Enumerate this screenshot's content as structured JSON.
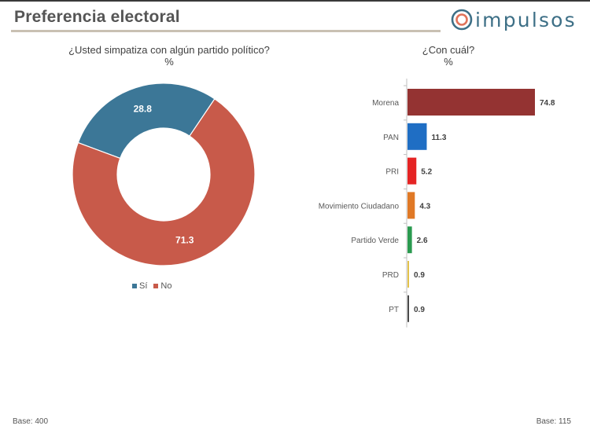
{
  "header": {
    "title": "Preferencia electoral",
    "logo_text": "impulsos"
  },
  "left_chart": {
    "question": "¿Usted simpatiza con algún partido político?",
    "unit": "%",
    "base": "Base: 400"
  },
  "right_chart": {
    "question": "¿Con cuál?",
    "unit": "%",
    "base": "Base: 115"
  },
  "chart_data": [
    {
      "type": "pie",
      "variant": "donut",
      "title": "¿Usted simpatiza con algún partido político?",
      "subtitle": "%",
      "categories": [
        "Sí",
        "No"
      ],
      "values": [
        28.8,
        71.3
      ],
      "colors": [
        "#3c7797",
        "#c85a4a"
      ],
      "legend_position": "bottom"
    },
    {
      "type": "bar",
      "orientation": "horizontal",
      "title": "¿Con cuál?",
      "subtitle": "%",
      "categories": [
        "Morena",
        "PAN",
        "PRI",
        "Movimiento Ciudadano",
        "Partido Verde",
        "PRD",
        "PT"
      ],
      "values": [
        74.8,
        11.3,
        5.2,
        4.3,
        2.6,
        0.9,
        0.9
      ],
      "colors": [
        "#943332",
        "#1f6ec4",
        "#e52424",
        "#e07926",
        "#2a9a4f",
        "#e3c24a",
        "#4a4a4a"
      ],
      "xlim": [
        0,
        80
      ]
    }
  ]
}
